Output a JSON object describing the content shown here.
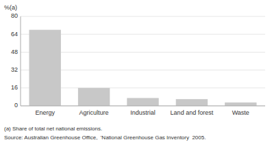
{
  "chart_data": {
    "type": "bar",
    "y_label": "%(a)",
    "categories": [
      "Energy",
      "Agriculture",
      "Industrial",
      "Land and forest",
      "Waste"
    ],
    "values": [
      68.0,
      16.0,
      7.0,
      6.0,
      3.0
    ],
    "color": "#c8c8c8",
    "ylim": [
      0,
      80
    ],
    "yticks": [
      0,
      16,
      32,
      48,
      64,
      80
    ],
    "grid": true,
    "annotations": [
      "(a) Share of total net national emissions.",
      "Source: Australian Greenhouse Office,  'National Greenhouse Gas Inventory  2005."
    ]
  }
}
